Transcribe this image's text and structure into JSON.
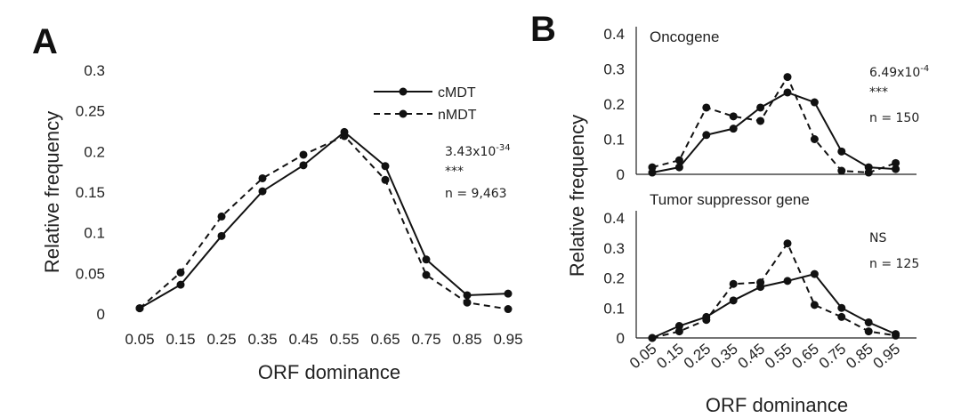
{
  "chart_data": [
    {
      "panel": "A",
      "type": "line",
      "title": "",
      "xlabel": "ORF dominance",
      "ylabel": "Relative frequency",
      "categories": [
        "0.05",
        "0.15",
        "0.25",
        "0.35",
        "0.45",
        "0.55",
        "0.65",
        "0.75",
        "0.85",
        "0.95"
      ],
      "y_ticks": [
        "0",
        "0.05",
        "0.1",
        "0.15",
        "0.2",
        "0.25",
        "0.3"
      ],
      "ylim": [
        0,
        0.3
      ],
      "series": [
        {
          "name": "cMDT",
          "style": "solid",
          "values": [
            0.007,
            0.036,
            0.096,
            0.151,
            0.183,
            0.224,
            0.182,
            0.067,
            0.023,
            0.025
          ]
        },
        {
          "name": "nMDT",
          "style": "dashed",
          "values": [
            0.007,
            0.051,
            0.12,
            0.167,
            0.196,
            0.219,
            0.165,
            0.048,
            0.014,
            0.006
          ]
        }
      ],
      "annotations": {
        "pvalue_base": "3.43x10",
        "pvalue_exp": "-34",
        "stars": "***",
        "n": "n = 9,463"
      },
      "legend": "top-right"
    },
    {
      "panel": "B-top",
      "type": "line",
      "title": "Oncogene",
      "categories": [
        "0.05",
        "0.15",
        "0.25",
        "0.35",
        "0.45",
        "0.55",
        "0.65",
        "0.75",
        "0.85",
        "0.95"
      ],
      "y_ticks": [
        "0",
        "0.1",
        "0.2",
        "0.3",
        "0.4"
      ],
      "ylim": [
        0,
        0.4
      ],
      "series": [
        {
          "name": "cMDT",
          "style": "solid",
          "values": [
            0.005,
            0.02,
            0.112,
            0.13,
            0.19,
            0.233,
            0.205,
            0.065,
            0.02,
            0.015
          ]
        },
        {
          "name": "nMDT",
          "style": "dashed",
          "values": [
            0.02,
            0.04,
            0.19,
            0.165,
            0.152,
            0.277,
            0.1,
            0.01,
            0.005,
            0.032
          ]
        }
      ],
      "annotations": {
        "pvalue_base": "6.49x10",
        "pvalue_exp": "-4",
        "stars": "***",
        "n": "n = 150"
      }
    },
    {
      "panel": "B-bottom",
      "type": "line",
      "title": "Tumor suppressor gene",
      "xlabel": "ORF dominance",
      "categories": [
        "0.05",
        "0.15",
        "0.25",
        "0.35",
        "0.45",
        "0.55",
        "0.65",
        "0.75",
        "0.85",
        "0.95"
      ],
      "y_ticks": [
        "0",
        "0.1",
        "0.2",
        "0.3",
        "0.4"
      ],
      "ylim": [
        0,
        0.4
      ],
      "series": [
        {
          "name": "cMDT",
          "style": "solid",
          "values": [
            0.0,
            0.04,
            0.07,
            0.125,
            0.17,
            0.19,
            0.213,
            0.1,
            0.052,
            0.013
          ]
        },
        {
          "name": "nMDT",
          "style": "dashed",
          "values": [
            0.0,
            0.022,
            0.06,
            0.18,
            0.185,
            0.315,
            0.11,
            0.07,
            0.022,
            0.008
          ]
        }
      ],
      "annotations": {
        "significance": "NS",
        "n": "n = 125"
      }
    }
  ],
  "panels": {
    "a_letter": "A",
    "b_letter": "B",
    "b_ylabel": "Relative frequency",
    "b_xlabel": "ORF dominance"
  }
}
